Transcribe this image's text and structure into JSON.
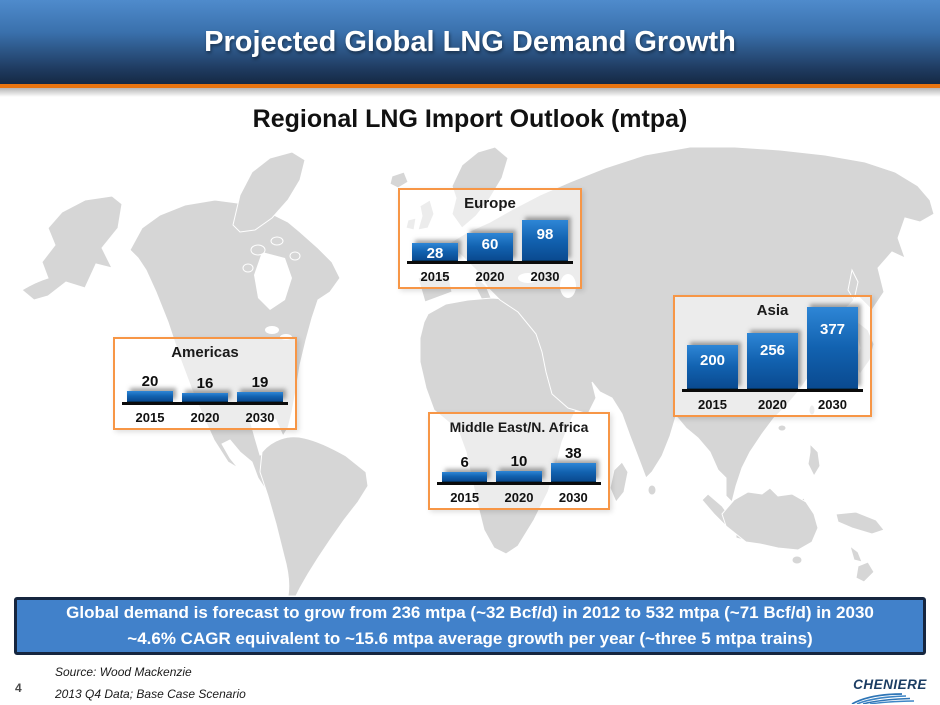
{
  "slide": {
    "title": "Projected Global LNG Demand Growth",
    "subtitle": "Regional LNG Import Outlook (mtpa)",
    "page_number": "4",
    "footer": {
      "source_line1": "Source: Wood Mackenzie",
      "source_line2": "2013 Q4 Data; Base Case Scenario"
    },
    "logo_text": "CHENIERE",
    "banner": {
      "line1": "Global demand is forecast to grow from 236 mtpa (~32 Bcf/d) in 2012 to 532 mtpa (~71 Bcf/d) in 2030",
      "line2": "~4.6% CAGR equivalent to ~15.6 mtpa average growth per year (~three 5 mtpa trains)"
    },
    "colors": {
      "header_top": "#4f8bcc",
      "header_bottom": "#152944",
      "accent_orange": "#e8740f",
      "box_border_orange": "#f79646",
      "bar_blue_top": "#2e86d6",
      "bar_blue_bottom": "#0a4a90",
      "banner_bg": "#4181ca",
      "banner_border": "#16263f",
      "map_land": "#d6d6d6",
      "logo_navy": "#1c3d63"
    }
  },
  "chart_data": {
    "type": "bar",
    "title": "Regional LNG Import Outlook (mtpa)",
    "unit": "mtpa",
    "categories": [
      "2015",
      "2020",
      "2030"
    ],
    "series": [
      {
        "name": "Americas",
        "values": [
          20,
          16,
          19
        ]
      },
      {
        "name": "Europe",
        "values": [
          28,
          60,
          98
        ]
      },
      {
        "name": "Middle East/N. Africa",
        "values": [
          6,
          10,
          38
        ]
      },
      {
        "name": "Asia",
        "values": [
          200,
          256,
          377
        ]
      }
    ],
    "legend": "none",
    "grid": false,
    "value_labels": true
  }
}
